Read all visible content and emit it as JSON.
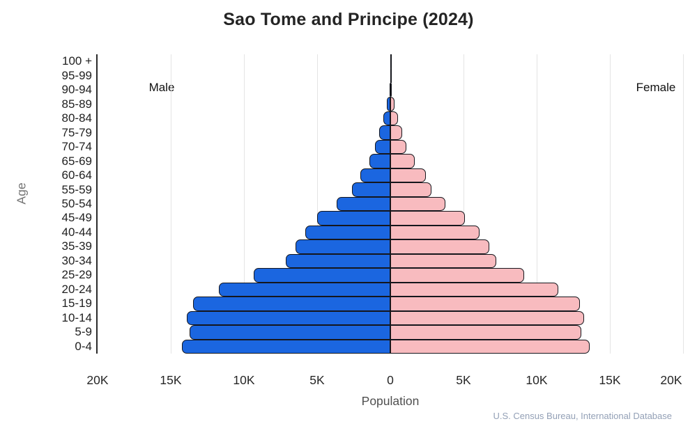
{
  "source": "U.S. Census Bureau, International Database",
  "colors": {
    "male_fill": "#1b66e0",
    "female_fill": "#f8bbbf",
    "bar_outline": "#15161c",
    "gridline": "#e4e4e4",
    "axis_line": "#2a2a2a",
    "source_text": "#93a0b6"
  },
  "chart_data": {
    "type": "bar",
    "subtype": "population-pyramid",
    "title": "Sao Tome and Principe (2024)",
    "xlabel": "Population",
    "ylabel": "Age",
    "left_series_label": "Male",
    "right_series_label": "Female",
    "grid": true,
    "xlim": [
      -20000,
      20000
    ],
    "xticks": {
      "values": [
        -20000,
        -15000,
        -10000,
        -5000,
        0,
        5000,
        10000,
        15000,
        20000
      ],
      "labels": [
        "20K",
        "15K",
        "10K",
        "5K",
        "0",
        "5K",
        "10K",
        "15K",
        "20K"
      ]
    },
    "categories_top_to_bottom": [
      "100 +",
      "95-99",
      "90-94",
      "85-89",
      "80-84",
      "75-79",
      "70-74",
      "65-69",
      "60-64",
      "55-59",
      "50-54",
      "45-49",
      "40-44",
      "35-39",
      "30-34",
      "25-29",
      "20-24",
      "15-19",
      "10-14",
      "5-9",
      "0-4"
    ],
    "series": [
      {
        "name": "Male",
        "side": "left",
        "values_top_to_bottom": [
          5,
          15,
          70,
          230,
          470,
          760,
          1060,
          1410,
          2070,
          2640,
          3680,
          5010,
          5810,
          6480,
          7140,
          9330,
          11720,
          13470,
          13900,
          13720,
          14240
        ]
      },
      {
        "name": "Female",
        "side": "right",
        "values_top_to_bottom": [
          10,
          25,
          90,
          280,
          520,
          830,
          1110,
          1660,
          2410,
          2820,
          3760,
          5090,
          6100,
          6760,
          7230,
          9130,
          11470,
          12960,
          13230,
          13050,
          13640
        ]
      }
    ]
  }
}
